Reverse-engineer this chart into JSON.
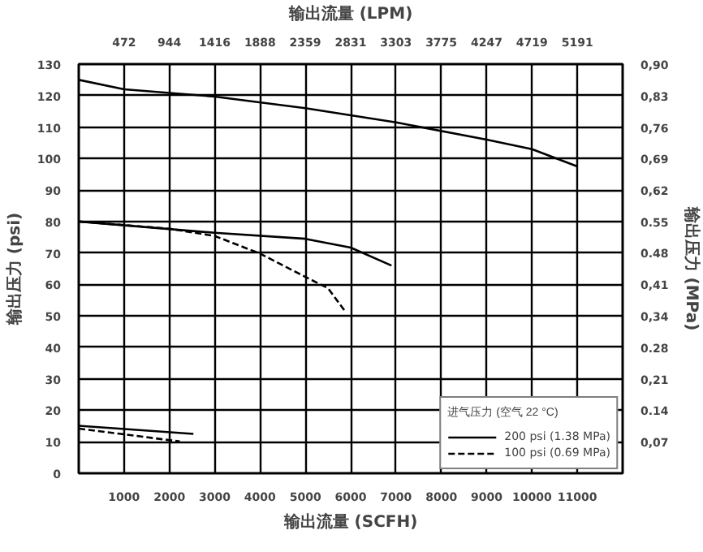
{
  "chart_data": {
    "type": "line",
    "xlabel": "输出流量 (SCFH)",
    "x2label": "输出流量 (LPM)",
    "ylabel": "输出压力 (psi)",
    "y2label": "输出压力 (MPa)",
    "legend_title": "进气压力 (空气 22 °C)",
    "xlim": [
      0,
      12000
    ],
    "xticks": [
      1000,
      2000,
      3000,
      4000,
      5000,
      6000,
      7000,
      8000,
      9000,
      10000,
      11000
    ],
    "x2lim": [
      0,
      5663
    ],
    "x2ticks": [
      472,
      944,
      1416,
      1888,
      2359,
      2831,
      3303,
      3775,
      4247,
      4719,
      5191
    ],
    "ylim": [
      0,
      130
    ],
    "yticks": [
      0,
      10,
      20,
      30,
      40,
      50,
      60,
      70,
      80,
      90,
      100,
      110,
      120,
      130
    ],
    "y2lim": [
      0,
      0.896
    ],
    "y2ticks": [
      {
        "value": 0.069,
        "label": "0,07"
      },
      {
        "value": 0.138,
        "label": "0.14"
      },
      {
        "value": 0.207,
        "label": "0,21"
      },
      {
        "value": 0.276,
        "label": "0.28"
      },
      {
        "value": 0.345,
        "label": "0,34"
      },
      {
        "value": 0.414,
        "label": "0,41"
      },
      {
        "value": 0.483,
        "label": "0.48"
      },
      {
        "value": 0.552,
        "label": "0.55"
      },
      {
        "value": 0.621,
        "label": "0,62"
      },
      {
        "value": 0.689,
        "label": "0,69"
      },
      {
        "value": 0.758,
        "label": "0,76"
      },
      {
        "value": 0.827,
        "label": "0,83"
      },
      {
        "value": 0.896,
        "label": "0,90"
      }
    ],
    "grid": true,
    "legend": "bottom right",
    "series": [
      {
        "name": "200 psi (1.38 MPa)",
        "color": "#000000",
        "line_style": "solid",
        "x": [
          0,
          1000,
          3000,
          5000,
          7000,
          9000,
          10000,
          11000
        ],
        "values": [
          125,
          122,
          119.7,
          116,
          111.5,
          106,
          103,
          97.5
        ]
      },
      {
        "name": "100 psi (0.69 MPa)",
        "color": "#000000",
        "line_style": "dashed",
        "x": [
          0,
          2000,
          3000,
          4000,
          5000,
          5500,
          5900
        ],
        "values": [
          80,
          77.7,
          75.4,
          69.8,
          62.4,
          58.8,
          51
        ]
      },
      {
        "color": "#000000",
        "line_style": "solid",
        "x": [
          0,
          3000,
          5000,
          6000,
          6900
        ],
        "values": [
          80,
          76.4,
          74.5,
          71.7,
          66
        ]
      },
      {
        "color": "#000000",
        "line_style": "solid",
        "x": [
          0,
          2530
        ],
        "values": [
          15.1,
          12.5
        ]
      },
      {
        "color": "#000000",
        "line_style": "dashed",
        "x": [
          0,
          2230
        ],
        "values": [
          14.2,
          10.1
        ]
      }
    ]
  }
}
